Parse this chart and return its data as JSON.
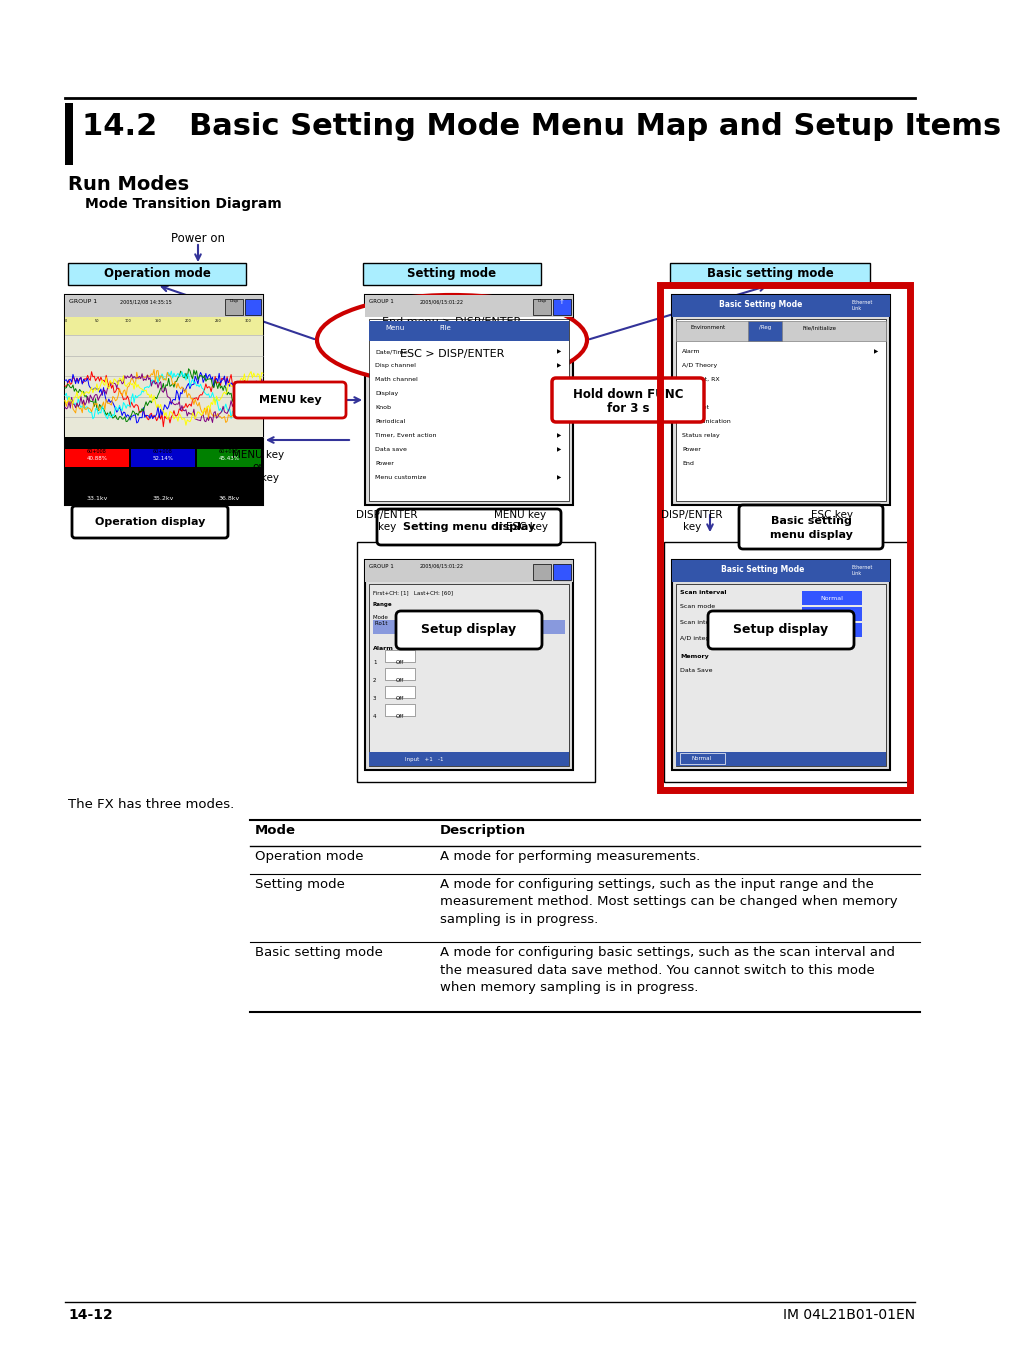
{
  "title": "14.2   Basic Setting Mode Menu Map and Setup Items",
  "section": "Run Modes",
  "subsection": "Mode Transition Diagram",
  "bg_color": "#ffffff",
  "footer_left": "14-12",
  "footer_right": "IM 04L21B01-01EN",
  "table_rows": [
    [
      "Operation mode",
      "A mode for performing measurements."
    ],
    [
      "Setting mode",
      "A mode for configuring settings, such as the input range and the\nmeasurement method. Most settings can be changed when memory\nsampling is in progress."
    ],
    [
      "Basic setting mode",
      "A mode for configuring basic settings, such as the scan interval and\nthe measured data save method. You cannot switch to this mode\nwhen memory sampling is in progress."
    ]
  ]
}
